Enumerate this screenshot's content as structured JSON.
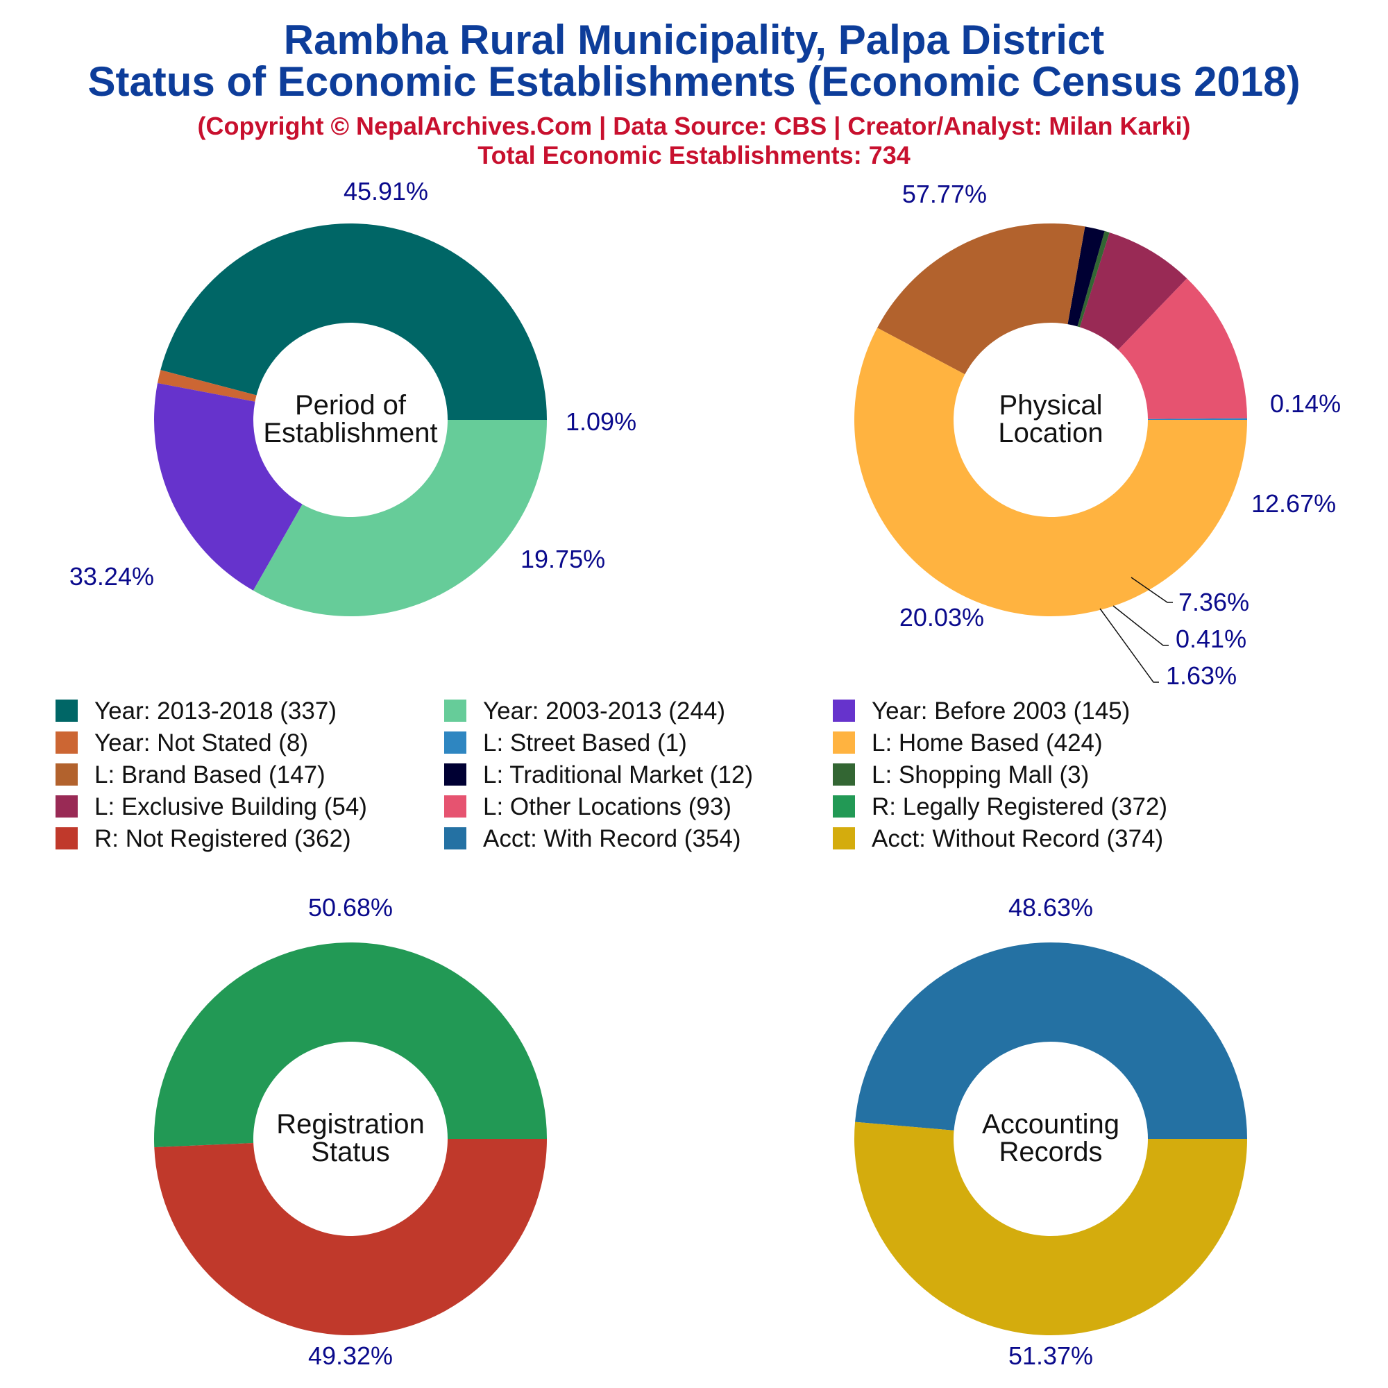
{
  "title": {
    "line1": "Rambha Rural Municipality, Palpa District",
    "line2": "Status of Economic Establishments (Economic Census 2018)"
  },
  "subtitle": {
    "copyright": "(Copyright © NepalArchives.Com | Data Source: CBS | Creator/Analyst: Milan Karki)",
    "total": "Total Economic Establishments: 734"
  },
  "colors": {
    "title": "#0d3d9a",
    "subtitle": "#c8102e",
    "percent_label": "#0a0a8c"
  },
  "legend": [
    {
      "label": "Year: 2013-2018 (337)",
      "color": "#006666"
    },
    {
      "label": "Year: 2003-2013 (244)",
      "color": "#66cc99"
    },
    {
      "label": "Year: Before 2003 (145)",
      "color": "#6633cc"
    },
    {
      "label": "Year: Not Stated (8)",
      "color": "#cc6633"
    },
    {
      "label": "L: Street Based (1)",
      "color": "#2e86c1"
    },
    {
      "label": "L: Home Based (424)",
      "color": "#ffb340"
    },
    {
      "label": "L: Brand Based (147)",
      "color": "#b2622d"
    },
    {
      "label": "L: Traditional Market (12)",
      "color": "#000033"
    },
    {
      "label": "L: Shopping Mall (3)",
      "color": "#336633"
    },
    {
      "label": "L: Exclusive Building (54)",
      "color": "#992a55"
    },
    {
      "label": "L: Other Locations (93)",
      "color": "#e65370"
    },
    {
      "label": "R: Legally Registered (372)",
      "color": "#229955"
    },
    {
      "label": "R: Not Registered (362)",
      "color": "#c0392b"
    },
    {
      "label": "Acct: With Record (354)",
      "color": "#2471a3"
    },
    {
      "label": "Acct: Without Record (374)",
      "color": "#d4ac0d"
    }
  ],
  "chart_data": [
    {
      "type": "pie",
      "center_label": [
        "Period of",
        "Establishment"
      ],
      "categories": [
        "Year: 2013-2018",
        "Year: Not Stated",
        "Year: Before 2003",
        "Year: 2003-2013"
      ],
      "values": [
        337,
        8,
        145,
        244
      ],
      "colors": [
        "#006666",
        "#cc6633",
        "#6633cc",
        "#66cc99"
      ],
      "percent_labels": [
        "45.91%",
        "1.09%",
        "19.75%",
        "33.24%"
      ]
    },
    {
      "type": "pie",
      "center_label": [
        "Physical",
        "Location"
      ],
      "categories": [
        "L: Street Based",
        "L: Other Locations",
        "L: Exclusive Building",
        "L: Shopping Mall",
        "L: Traditional Market",
        "L: Brand Based",
        "L: Home Based"
      ],
      "values": [
        1,
        93,
        54,
        3,
        12,
        147,
        424
      ],
      "colors": [
        "#2e86c1",
        "#e65370",
        "#992a55",
        "#336633",
        "#000033",
        "#b2622d",
        "#ffb340"
      ],
      "percent_labels": [
        "0.14%",
        "12.67%",
        "7.36%",
        "0.41%",
        "1.63%",
        "20.03%",
        "57.77%"
      ]
    },
    {
      "type": "pie",
      "center_label": [
        "Registration",
        "Status"
      ],
      "categories": [
        "R: Legally Registered",
        "R: Not Registered"
      ],
      "values": [
        372,
        362
      ],
      "colors": [
        "#229955",
        "#c0392b"
      ],
      "percent_labels": [
        "50.68%",
        "49.32%"
      ]
    },
    {
      "type": "pie",
      "center_label": [
        "Accounting",
        "Records"
      ],
      "categories": [
        "Acct: With Record",
        "Acct: Without Record"
      ],
      "values": [
        354,
        374
      ],
      "colors": [
        "#2471a3",
        "#d4ac0d"
      ],
      "percent_labels": [
        "48.63%",
        "51.37%"
      ]
    }
  ]
}
